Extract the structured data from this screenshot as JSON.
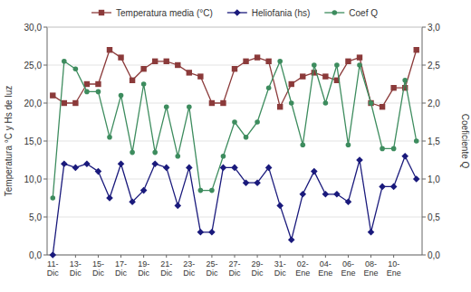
{
  "chart_data": {
    "type": "line",
    "categories": [
      "11-\nDic",
      null,
      "13-\nDic",
      null,
      "15-\nDic",
      null,
      "17-\nDic",
      null,
      "19-\nDic",
      null,
      "21-\nDic",
      null,
      "23-\nDic",
      null,
      "25-\nDic",
      null,
      "27-\nDic",
      null,
      "29-\nDic",
      null,
      "31-\nDic",
      null,
      "02-\nEne",
      null,
      "04-\nEne",
      null,
      "06-\nEne",
      null,
      "08-\nEne",
      null,
      "10-\nEne",
      null,
      null
    ],
    "series": [
      {
        "name": "Temperatura media (°C)",
        "color": "#8B3A3A",
        "marker": "square",
        "values": [
          21.0,
          20.0,
          20.0,
          22.5,
          22.5,
          27.0,
          26.0,
          23.0,
          24.5,
          25.5,
          25.5,
          25.0,
          24.0,
          23.5,
          20.0,
          20.0,
          24.5,
          25.5,
          26.0,
          25.5,
          19.5,
          22.5,
          23.5,
          24.0,
          23.5,
          23.0,
          25.5,
          26.0,
          20.0,
          19.5,
          22.0,
          22.0,
          27.0
        ]
      },
      {
        "name": "Heliofania (hs)",
        "color": "#1a1a7c",
        "marker": "diamond",
        "values": [
          0.0,
          12.0,
          11.5,
          12.0,
          11.0,
          7.5,
          12.0,
          7.0,
          8.5,
          12.0,
          11.5,
          6.5,
          11.5,
          3.0,
          3.0,
          11.5,
          11.5,
          9.5,
          9.5,
          11.5,
          6.5,
          2.0,
          8.0,
          11.0,
          8.0,
          8.0,
          7.0,
          12.5,
          3.0,
          9.0,
          9.0,
          13.0,
          10.0
        ]
      },
      {
        "name": "Coef Q",
        "color": "#3d8c5e",
        "marker": "circle",
        "axis": "y2",
        "values": [
          0.75,
          2.55,
          2.45,
          2.15,
          2.15,
          1.55,
          2.1,
          1.35,
          2.25,
          1.35,
          1.95,
          1.3,
          1.95,
          0.85,
          0.85,
          1.3,
          1.75,
          1.55,
          1.75,
          2.2,
          2.55,
          2.0,
          1.45,
          2.5,
          2.0,
          2.5,
          1.45,
          2.5,
          2.0,
          1.4,
          1.4,
          2.3,
          1.5
        ]
      }
    ],
    "ylabel": "Temperatura °C y Hs de luz",
    "y2label": "Coeficiente Q",
    "ylim": [
      0.0,
      30.0
    ],
    "yticks": [
      {
        "value": 0.0,
        "label": "0,0"
      },
      {
        "value": 5.0,
        "label": "5,0"
      },
      {
        "value": 10.0,
        "label": "10,0"
      },
      {
        "value": 15.0,
        "label": "15,0"
      },
      {
        "value": 20.0,
        "label": "20,0"
      },
      {
        "value": 25.0,
        "label": "25,0"
      },
      {
        "value": 30.0,
        "label": "30,0"
      }
    ],
    "y2lim": [
      0.0,
      3.0
    ],
    "y2ticks": [
      {
        "value": 0.0,
        "label": "0,0"
      },
      {
        "value": 0.5,
        "label": "0,5"
      },
      {
        "value": 1.0,
        "label": "1,0"
      },
      {
        "value": 1.5,
        "label": "1,5"
      },
      {
        "value": 2.0,
        "label": "2,0"
      },
      {
        "value": 2.5,
        "label": "2,5"
      },
      {
        "value": 3.0,
        "label": "3,0"
      }
    ],
    "grid": true,
    "legend": "top"
  }
}
